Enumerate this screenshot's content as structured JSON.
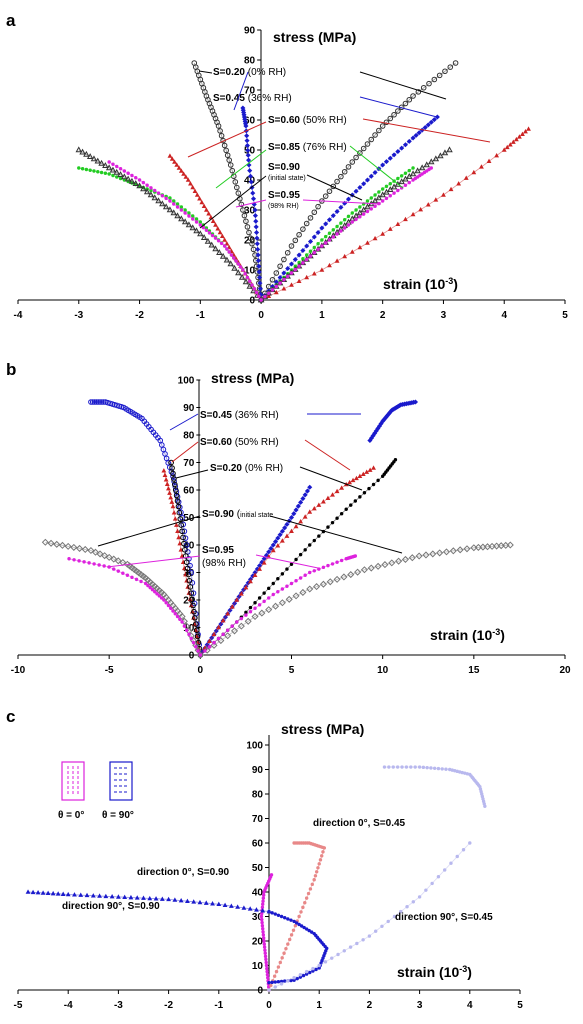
{
  "chart_data": [
    {
      "type": "scatter",
      "panel": "a",
      "xlabel": "strain (10",
      "xlabel_sup": "-3",
      "xlabel_close": ")",
      "ylabel": "stress (MPa)",
      "xlim": [
        -4,
        5
      ],
      "ylim": [
        0,
        90
      ],
      "xticks": [
        "-4",
        "-3",
        "-2",
        "-1",
        "0",
        "1",
        "2",
        "3",
        "4",
        "5"
      ],
      "yticks": [
        "0",
        "10",
        "20",
        "30",
        "40",
        "50",
        "60",
        "70",
        "80",
        "90"
      ],
      "annotations": [
        {
          "bold": "S=0.20",
          "rest": " (0% RH)"
        },
        {
          "bold": "S=0.45",
          "rest": " (36% RH)"
        },
        {
          "bold": "S=0.60",
          "rest": " (50% RH)"
        },
        {
          "bold": "S=0.85",
          "rest": " (76% RH)"
        },
        {
          "bold": "S=0.90",
          "rest": "",
          "sub": "(initial state)"
        },
        {
          "bold": "S=0.95",
          "rest": "",
          "sub": "(98% RH)"
        }
      ],
      "series": [
        {
          "color": "#333333",
          "marker": "open-circle",
          "x_long": [
            0,
            0.5,
            1,
            1.5,
            2,
            2.5,
            3.2
          ],
          "y_long": [
            0,
            18,
            33,
            46,
            58,
            68,
            79
          ],
          "x_trans": [
            0,
            -0.1,
            -0.3,
            -0.5,
            -0.7,
            -0.9,
            -1.1
          ],
          "y_trans": [
            0,
            15,
            30,
            45,
            58,
            68,
            79
          ]
        },
        {
          "color": "#1a1acc",
          "marker": "diamond",
          "x_long": [
            0,
            0.5,
            1,
            1.5,
            2,
            2.5,
            2.9
          ],
          "y_long": [
            0,
            12,
            24,
            35,
            45,
            54,
            61
          ],
          "x_trans": [
            0,
            -0.05,
            -0.1,
            -0.2,
            -0.25,
            -0.3
          ],
          "y_trans": [
            0,
            15,
            30,
            45,
            58,
            64
          ]
        },
        {
          "color": "#cc2222",
          "marker": "triangle",
          "x_long": [
            0,
            1,
            2,
            3,
            4,
            4.4
          ],
          "y_long": [
            0,
            10,
            22,
            35,
            50,
            57
          ],
          "x_trans": [
            0,
            -0.3,
            -0.6,
            -0.9,
            -1.2,
            -1.5
          ],
          "y_trans": [
            0,
            10,
            20,
            30,
            40,
            48
          ]
        },
        {
          "color": "#22cc22",
          "marker": "dot",
          "x_long": [
            0,
            0.5,
            1,
            1.5,
            2,
            2.5
          ],
          "y_long": [
            0,
            10,
            20,
            29,
            37,
            44
          ],
          "x_trans": [
            0,
            -0.3,
            -0.6,
            -1,
            -1.5,
            -2,
            -2.5,
            -3
          ],
          "y_trans": [
            0,
            10,
            18,
            26,
            34,
            38,
            42,
            44
          ]
        },
        {
          "color": "#333333",
          "marker": "open-triangle",
          "x_long": [
            0,
            0.5,
            1,
            1.5,
            2,
            2.5,
            3.1
          ],
          "y_long": [
            0,
            9,
            18,
            27,
            35,
            42,
            50
          ],
          "x_trans": [
            0,
            -0.5,
            -1,
            -1.5,
            -2,
            -2.5,
            -3
          ],
          "y_trans": [
            0,
            12,
            22,
            30,
            38,
            44,
            50
          ]
        },
        {
          "color": "#dd22dd",
          "marker": "dot",
          "x_long": [
            0,
            0.5,
            1,
            1.5,
            2,
            2.5,
            2.8
          ],
          "y_long": [
            0,
            9,
            18,
            26,
            33,
            40,
            44
          ],
          "x_trans": [
            0,
            -0.3,
            -0.6,
            -1,
            -1.5,
            -2,
            -2.5
          ],
          "y_trans": [
            0,
            10,
            18,
            25,
            33,
            40,
            46
          ]
        }
      ]
    },
    {
      "type": "scatter",
      "panel": "b",
      "xlabel": "strain (10",
      "xlabel_sup": "-3",
      "xlabel_close": ")",
      "ylabel": "stress (MPa)",
      "xlim": [
        -10,
        20
      ],
      "ylim": [
        0,
        100
      ],
      "xticks": [
        "-10",
        "-5",
        "0",
        "5",
        "10",
        "15",
        "20"
      ],
      "yticks": [
        "0",
        "10",
        "20",
        "30",
        "40",
        "50",
        "60",
        "70",
        "80",
        "90",
        "100"
      ],
      "annotations": [
        {
          "bold": "S=0.45",
          "rest": " (36% RH)"
        },
        {
          "bold": "S=0.60",
          "rest": " (50% RH)"
        },
        {
          "bold": "S=0.20",
          "rest": " (0% RH)"
        },
        {
          "bold": "S=0.90",
          "rest": " (",
          "sub": "initial state"
        },
        {
          "bold": "S=0.95",
          "rest": "",
          "sub2": "(98% RH)"
        }
      ],
      "series": [
        {
          "color": "#1a1acc",
          "marker": "diamond",
          "x": [
            0,
            1,
            2,
            3,
            4,
            5,
            6
          ],
          "y": [
            0,
            10,
            20,
            30,
            40,
            50,
            61
          ]
        },
        {
          "color": "#1a1acc",
          "marker": "diamond",
          "x": [
            9.3,
            10,
            10.5,
            11,
            11.8
          ],
          "y": [
            78,
            85,
            89,
            91,
            92
          ]
        },
        {
          "color": "#1a1acc",
          "marker": "open-circle",
          "x": [
            0,
            -0.5,
            -1,
            -1.5,
            -2.2,
            -3.2,
            -4.2,
            -5.2,
            -6
          ],
          "y": [
            0,
            30,
            50,
            65,
            78,
            86,
            90,
            92,
            92
          ]
        },
        {
          "color": "#cc2222",
          "marker": "triangle",
          "x": [
            0,
            2,
            4,
            6,
            8,
            9.5
          ],
          "y": [
            0,
            20,
            38,
            52,
            62,
            68
          ]
        },
        {
          "color": "#cc2222",
          "marker": "triangle",
          "x": [
            0,
            -0.5,
            -1,
            -1.5,
            -2
          ],
          "y": [
            0,
            18,
            36,
            54,
            67
          ]
        },
        {
          "color": "#000000",
          "marker": "dot",
          "x": [
            0,
            2,
            4,
            6,
            8,
            10,
            10.7
          ],
          "y": [
            0,
            12,
            26,
            40,
            53,
            65,
            71
          ]
        },
        {
          "color": "#000000",
          "marker": "open-circle",
          "x": [
            0,
            -0.4,
            -0.8,
            -1.2,
            -1.6
          ],
          "y": [
            0,
            18,
            36,
            54,
            70
          ]
        },
        {
          "color": "#777777",
          "marker": "open-diamond",
          "x": [
            0,
            3,
            6,
            9,
            12,
            15,
            17
          ],
          "y": [
            0,
            14,
            24,
            31,
            36,
            39,
            40
          ]
        },
        {
          "color": "#777777",
          "marker": "open-diamond",
          "x": [
            0,
            -1,
            -2,
            -3,
            -4,
            -6,
            -8.5
          ],
          "y": [
            0,
            14,
            22,
            28,
            33,
            38,
            41
          ]
        },
        {
          "color": "#dd22dd",
          "marker": "dot",
          "x": [
            0,
            2,
            4,
            6,
            8,
            8.5
          ],
          "y": [
            0,
            12,
            22,
            30,
            35,
            36
          ]
        },
        {
          "color": "#dd22dd",
          "marker": "dot",
          "x": [
            0,
            -1,
            -2,
            -3,
            -5,
            -7.2
          ],
          "y": [
            0,
            12,
            20,
            26,
            32,
            35
          ]
        }
      ]
    },
    {
      "type": "scatter",
      "panel": "c",
      "xlabel": "strain (10",
      "xlabel_sup": "-3",
      "xlabel_close": ")",
      "ylabel": "stress (MPa)",
      "xlim": [
        -5,
        5
      ],
      "ylim": [
        0,
        100
      ],
      "xticks": [
        "-5",
        "-4",
        "-3",
        "-2",
        "-1",
        "0",
        "1",
        "2",
        "3",
        "4",
        "5"
      ],
      "yticks": [
        "0",
        "10",
        "20",
        "30",
        "40",
        "50",
        "60",
        "70",
        "80",
        "90",
        "100"
      ],
      "legend": [
        {
          "label": "θ = 0°",
          "color": "#dd22dd"
        },
        {
          "label": "θ = 90°",
          "color": "#1a1acc"
        }
      ],
      "annotations": [
        {
          "text": "direction 0°, S=0.45"
        },
        {
          "text": "direction 0°, S=0.90"
        },
        {
          "text": "direction 90°, S=0.90"
        },
        {
          "text": "direction 90°, S=0.45"
        }
      ],
      "series": [
        {
          "color": "#dd22dd",
          "marker": "dot",
          "x": [
            0,
            -0.05,
            -0.1,
            -0.15,
            -0.1,
            0.05
          ],
          "y": [
            0,
            10,
            20,
            30,
            40,
            47
          ]
        },
        {
          "color": "#e88888",
          "marker": "dot",
          "x": [
            0,
            0.3,
            0.6,
            0.9,
            1.1
          ],
          "y": [
            0,
            15,
            30,
            45,
            58
          ]
        },
        {
          "color": "#e88888",
          "marker": "dot",
          "x": [
            0.5,
            0.8,
            1.1
          ],
          "y": [
            60,
            60,
            58
          ]
        },
        {
          "color": "#1a1acc",
          "marker": "triangle",
          "x": [
            0,
            -1,
            -2,
            -3,
            -4,
            -4.8
          ],
          "y": [
            32,
            35,
            37,
            38,
            39,
            40
          ]
        },
        {
          "color": "#1a1acc",
          "marker": "dot",
          "x": [
            0,
            0.5,
            0.9,
            1.15,
            1.0,
            0.5,
            0
          ],
          "y": [
            32,
            28,
            23,
            17,
            9,
            4,
            3
          ]
        },
        {
          "color": "#b8b8ee",
          "marker": "dot",
          "x": [
            0,
            1,
            2,
            3,
            4
          ],
          "y": [
            0,
            10,
            22,
            38,
            60
          ]
        },
        {
          "color": "#b8b8ee",
          "marker": "dot",
          "x": [
            2.3,
            3,
            3.6,
            4,
            4.2,
            4.3
          ],
          "y": [
            91,
            91,
            90,
            88,
            83,
            75
          ]
        }
      ]
    }
  ]
}
